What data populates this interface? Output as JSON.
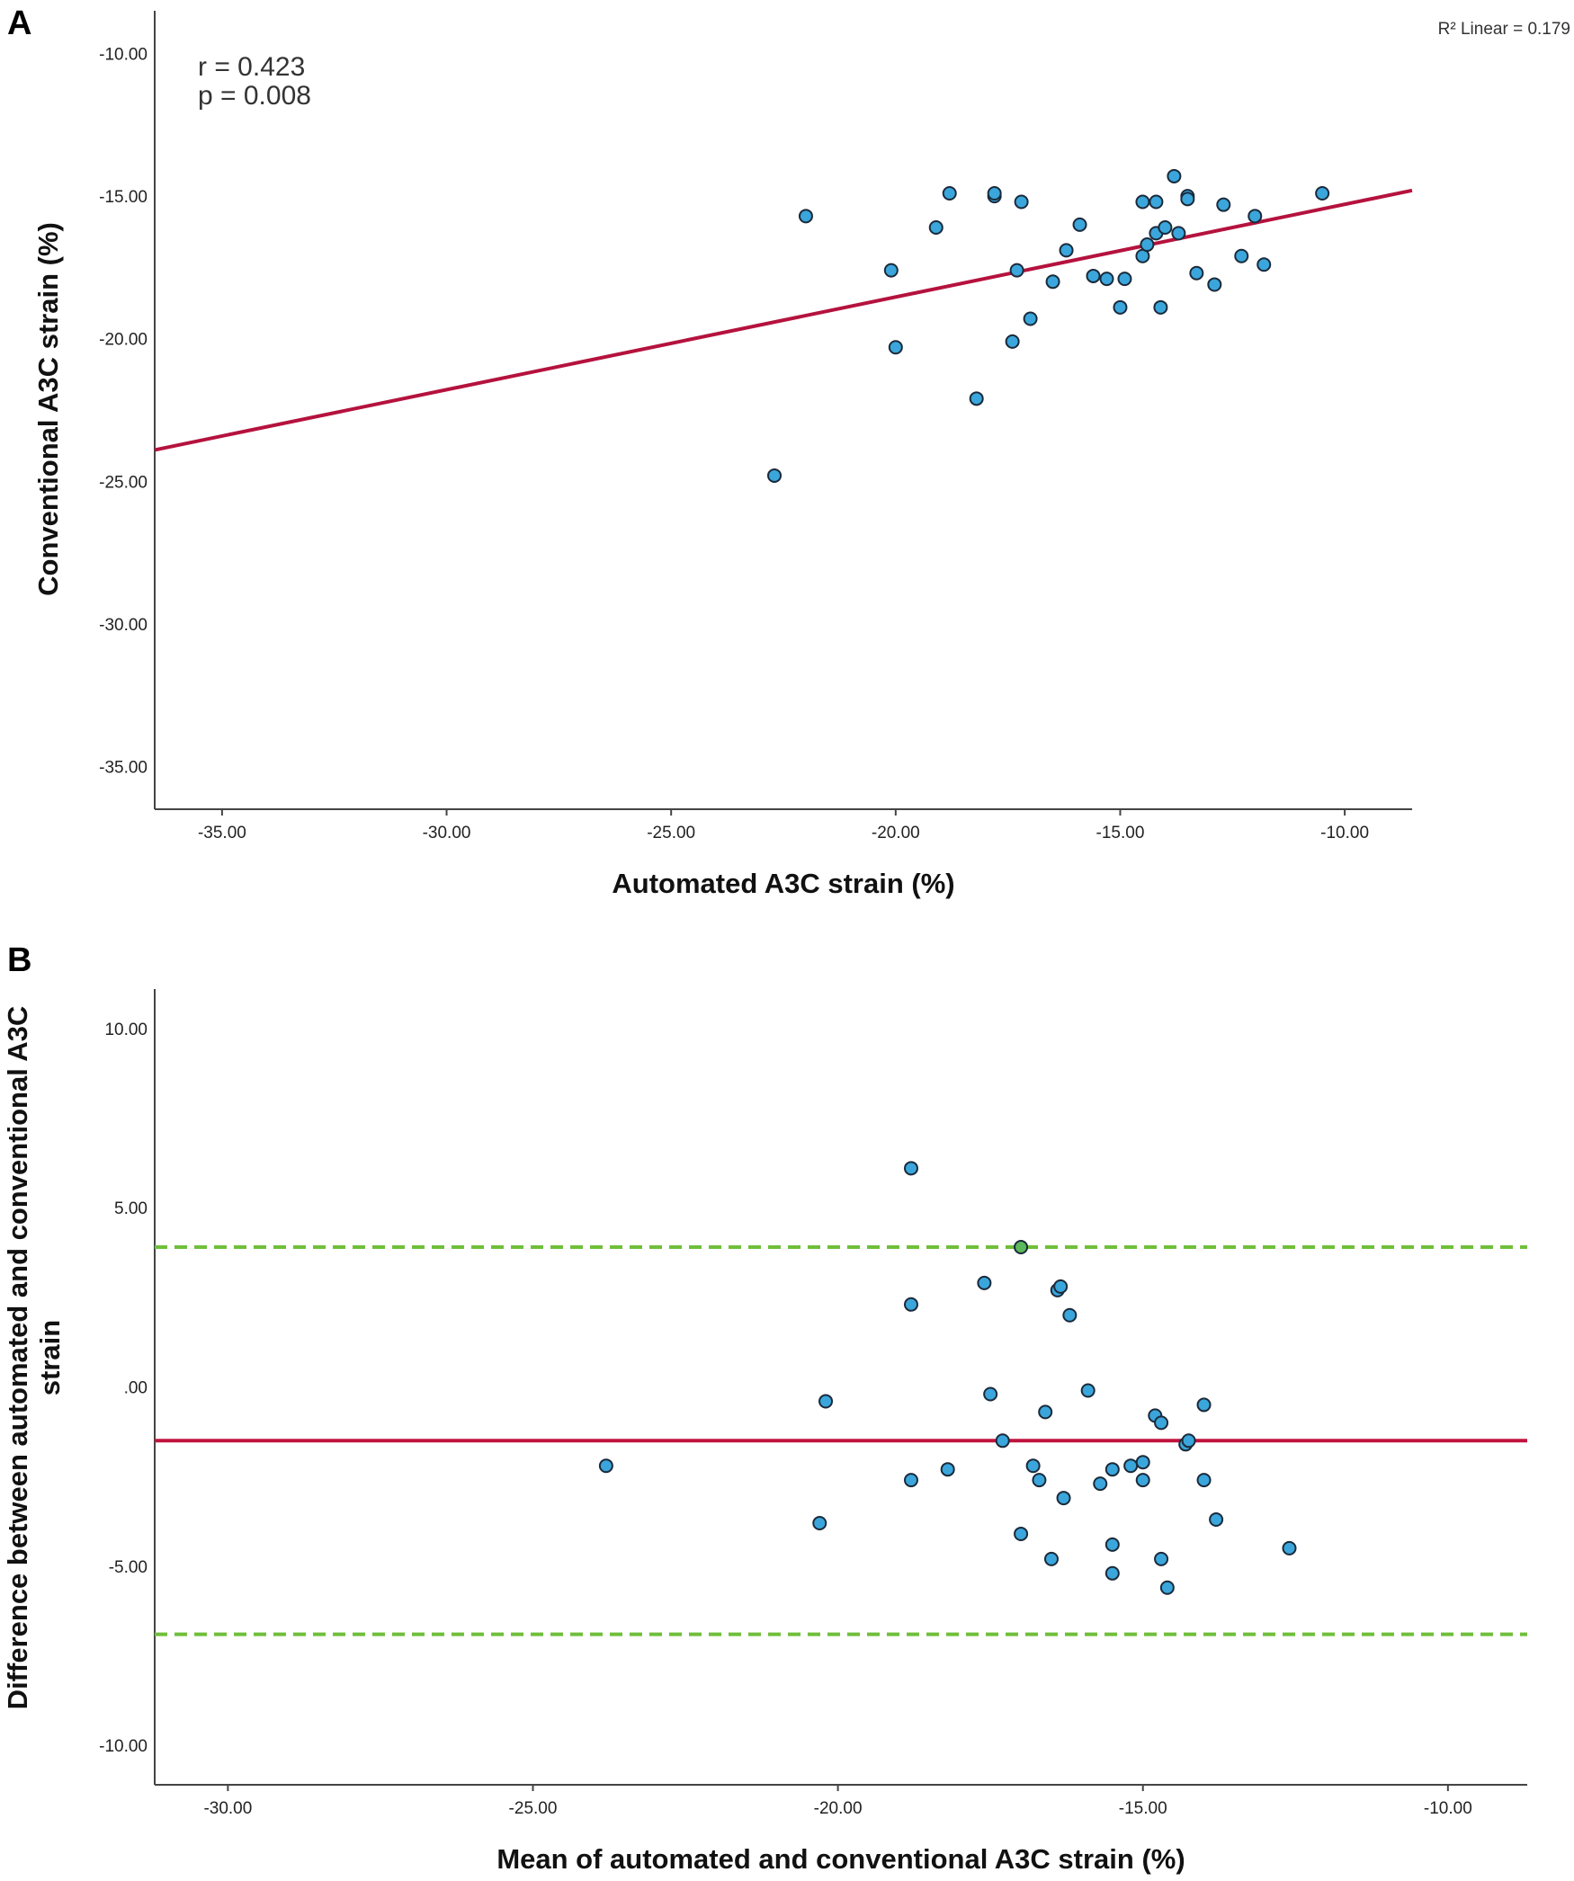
{
  "colors": {
    "point_fill": "#3aa6dc",
    "point_stroke": "#1b2a3a",
    "point_highlight": "#5cb85c",
    "regression_line": "#b5123e",
    "mean_line": "#c0143f",
    "loa_line": "#6fbf3a",
    "axis": "#444444"
  },
  "chart_data": [
    {
      "panel_label": "A",
      "type": "scatter",
      "xlabel": "Automated A3C strain (%)",
      "ylabel": "Conventional A3C strain (%)",
      "xlim": [
        -36.5,
        -8.5
      ],
      "ylim": [
        -36.5,
        -8.5
      ],
      "x_ticks": [
        -35,
        -30,
        -25,
        -20,
        -15,
        -10
      ],
      "x_tick_labels": [
        "-35.00",
        "-30.00",
        "-25.00",
        "-20.00",
        "-15.00",
        "-10.00"
      ],
      "y_ticks": [
        -10,
        -15,
        -20,
        -25,
        -30,
        -35
      ],
      "y_tick_labels": [
        "-10.00",
        "-15.00",
        "-20.00",
        "-25.00",
        "-30.00",
        "-35.00"
      ],
      "annotations": {
        "r": "r = 0.423",
        "p": "p = 0.008",
        "r2": "R² Linear = 0.179"
      },
      "regression": {
        "x": [
          -36.5,
          -8.5
        ],
        "y": [
          -23.9,
          -14.8
        ]
      },
      "points": [
        [
          -22.7,
          -24.8
        ],
        [
          -22.0,
          -15.7
        ],
        [
          -20.1,
          -17.6
        ],
        [
          -20.0,
          -20.3
        ],
        [
          -19.1,
          -16.1
        ],
        [
          -18.8,
          -14.9
        ],
        [
          -18.2,
          -22.1
        ],
        [
          -17.8,
          -15.0
        ],
        [
          -17.8,
          -14.9
        ],
        [
          -17.4,
          -20.1
        ],
        [
          -17.3,
          -17.6
        ],
        [
          -17.2,
          -15.2
        ],
        [
          -17.0,
          -19.3
        ],
        [
          -16.5,
          -18.0
        ],
        [
          -16.2,
          -16.9
        ],
        [
          -15.9,
          -16.0
        ],
        [
          -15.6,
          -17.8
        ],
        [
          -15.3,
          -17.9
        ],
        [
          -15.0,
          -18.9
        ],
        [
          -14.9,
          -17.9
        ],
        [
          -14.5,
          -15.2
        ],
        [
          -14.5,
          -17.1
        ],
        [
          -14.4,
          -16.7
        ],
        [
          -14.2,
          -15.2
        ],
        [
          -14.2,
          -16.3
        ],
        [
          -14.1,
          -18.9
        ],
        [
          -14.0,
          -16.1
        ],
        [
          -13.8,
          -14.3
        ],
        [
          -13.7,
          -16.3
        ],
        [
          -13.5,
          -15.0
        ],
        [
          -13.5,
          -15.1
        ],
        [
          -13.3,
          -17.7
        ],
        [
          -12.9,
          -18.1
        ],
        [
          -12.7,
          -15.3
        ],
        [
          -12.3,
          -17.1
        ],
        [
          -12.0,
          -15.7
        ],
        [
          -11.8,
          -17.4
        ],
        [
          -10.5,
          -14.9
        ]
      ]
    },
    {
      "panel_label": "B",
      "type": "scatter",
      "xlabel": "Mean of automated and conventional A3C strain (%)",
      "ylabel": [
        "Difference between automated and conventional A3C",
        "strain"
      ],
      "xlim": [
        -31.2,
        -8.7
      ],
      "ylim": [
        -11.1,
        11.1
      ],
      "x_ticks": [
        -30,
        -25,
        -20,
        -15,
        -10
      ],
      "x_tick_labels": [
        "-30.00",
        "-25.00",
        "-20.00",
        "-15.00",
        "-10.00"
      ],
      "y_ticks": [
        10,
        5,
        0,
        -5,
        -10
      ],
      "y_tick_labels": [
        "10.00",
        "5.00",
        ".00",
        "-5.00",
        "-10.00"
      ],
      "mean_difference": -1.5,
      "upper_limit": 3.9,
      "lower_limit": -6.9,
      "points": [
        [
          -23.8,
          -2.2
        ],
        [
          -20.3,
          -3.8
        ],
        [
          -20.2,
          -0.4
        ],
        [
          -18.8,
          6.1
        ],
        [
          -18.8,
          2.3
        ],
        [
          -18.8,
          -2.6
        ],
        [
          -18.2,
          -2.3
        ],
        [
          -17.6,
          2.9
        ],
        [
          -17.5,
          -0.2
        ],
        [
          -17.3,
          -1.5
        ],
        [
          -17.0,
          3.9
        ],
        [
          -17.0,
          -4.1
        ],
        [
          -16.8,
          -2.2
        ],
        [
          -16.7,
          -2.6
        ],
        [
          -16.6,
          -0.7
        ],
        [
          -16.5,
          -4.8
        ],
        [
          -16.4,
          2.7
        ],
        [
          -16.35,
          2.8
        ],
        [
          -16.3,
          -3.1
        ],
        [
          -16.2,
          2.0
        ],
        [
          -15.9,
          -0.1
        ],
        [
          -15.7,
          -2.7
        ],
        [
          -15.5,
          -2.3
        ],
        [
          -15.5,
          -4.4
        ],
        [
          -15.5,
          -5.2
        ],
        [
          -15.2,
          -2.2
        ],
        [
          -15.0,
          -2.1
        ],
        [
          -15.0,
          -2.6
        ],
        [
          -14.8,
          -0.8
        ],
        [
          -14.7,
          -1.0
        ],
        [
          -14.7,
          -4.8
        ],
        [
          -14.6,
          -5.6
        ],
        [
          -14.3,
          -1.6
        ],
        [
          -14.25,
          -1.5
        ],
        [
          -14.0,
          -0.5
        ],
        [
          -14.0,
          -2.6
        ],
        [
          -13.8,
          -3.7
        ],
        [
          -12.6,
          -4.5
        ]
      ]
    }
  ]
}
